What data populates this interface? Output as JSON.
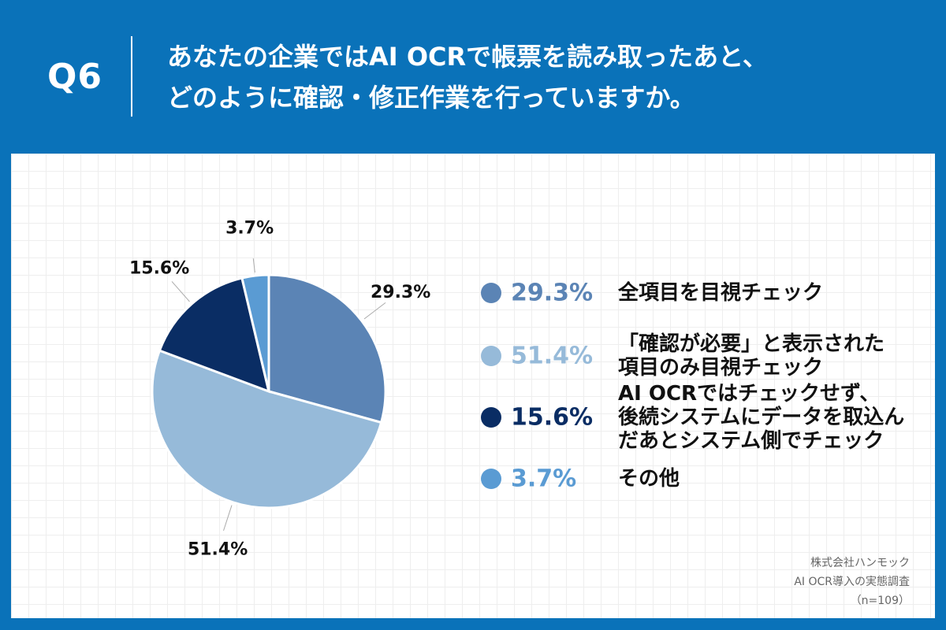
{
  "question": {
    "number": "Q6",
    "line1": "あなたの企業ではAI OCRで帳票を読み取ったあと、",
    "line2": "どのように確認・修正作業を行っていますか。"
  },
  "colors": {
    "background": "#0a72b9",
    "panel": "#ffffff",
    "slice1": "#5b84b5",
    "slice2": "#96bad9",
    "slice3": "#0a2d64",
    "slice4": "#5a9bd3"
  },
  "chart_data": {
    "type": "pie",
    "title": "",
    "start_angle": "12 o'clock",
    "direction": "clockwise",
    "labels": [
      "全項目を目視チェック",
      "「確認が必要」と表示された項目のみ目視チェック",
      "AI OCRではチェックせず、後続システムにデータを取込んだあとシステム側でチェック",
      "その他"
    ],
    "values": [
      29.3,
      51.4,
      15.6,
      3.7
    ],
    "value_labels": [
      "29.3%",
      "51.4%",
      "15.6%",
      "3.7%"
    ],
    "colors": [
      "#5b84b5",
      "#96bad9",
      "#0a2d64",
      "#5a9bd3"
    ],
    "legend_position": "right"
  },
  "legend": [
    {
      "pct": "29.3%",
      "label": "全項目を目視チェック",
      "color": "#5b84b5"
    },
    {
      "pct": "51.4%",
      "label": "「確認が必要」と表示された\n項目のみ目視チェック",
      "color": "#96bad9"
    },
    {
      "pct": "15.6%",
      "label": "AI OCRではチェックせず、\n後続システムにデータを取込ん\nだあとシステム側でチェック",
      "color": "#0a2d64"
    },
    {
      "pct": "3.7%",
      "label": "その他",
      "color": "#5a9bd3"
    }
  ],
  "source": {
    "company": "株式会社ハンモック",
    "survey": "AI OCR導入の実態調査",
    "n": "（n=109）"
  }
}
